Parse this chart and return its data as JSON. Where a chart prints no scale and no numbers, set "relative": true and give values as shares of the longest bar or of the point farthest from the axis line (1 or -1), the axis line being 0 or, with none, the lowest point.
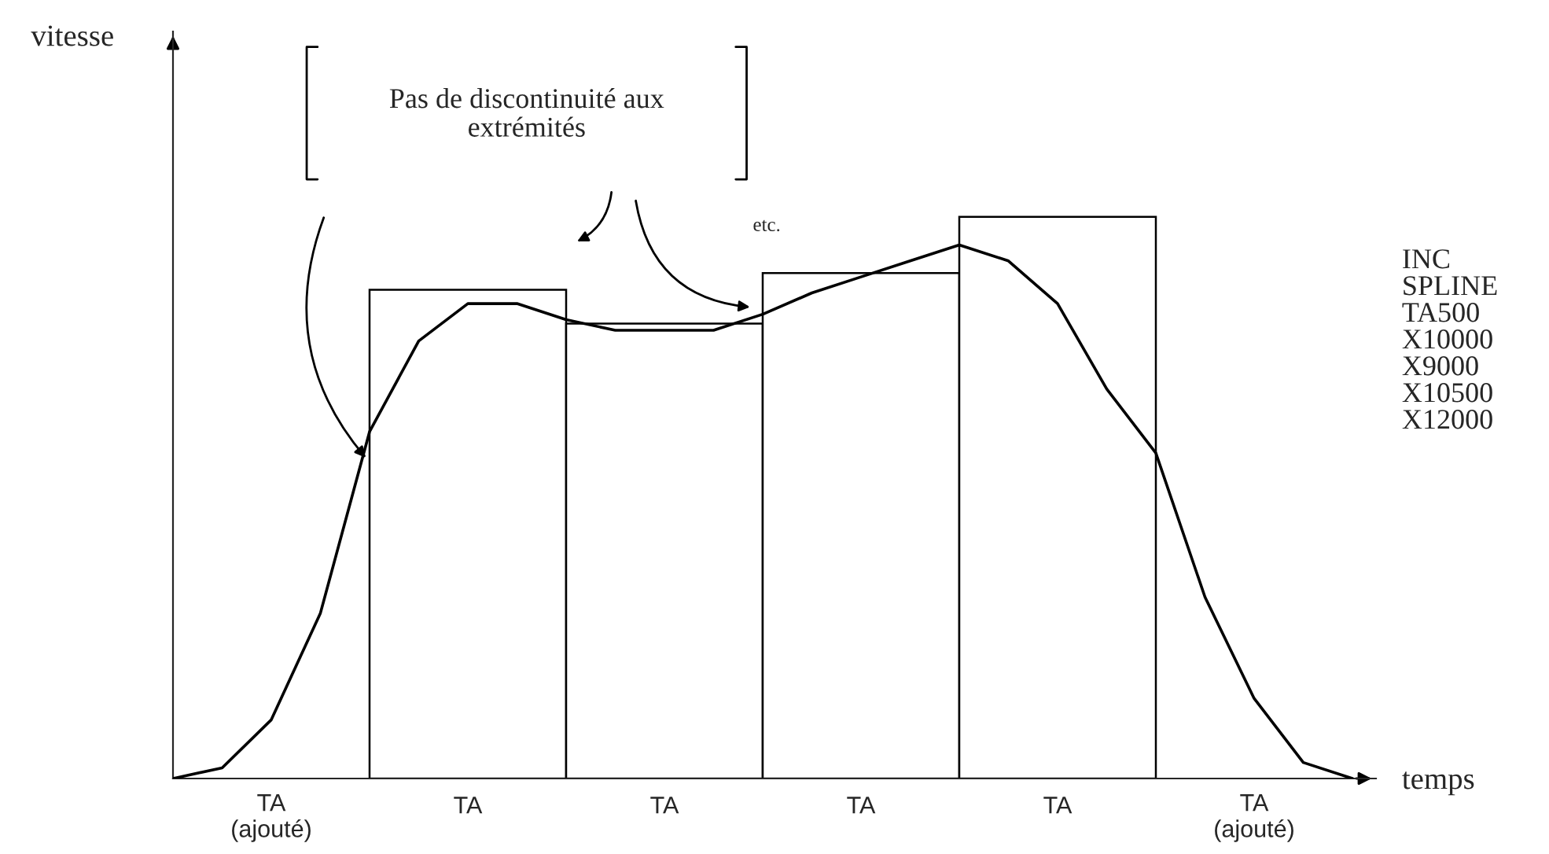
{
  "chart_data": [
    {
      "type": "bar",
      "relative": true,
      "ylabel": "vitesse",
      "categories": [
        "TA",
        "TA",
        "TA",
        "TA"
      ],
      "series": [
        {
          "color": "#000000",
          "values": [
            0.87,
            0.81,
            0.9,
            1
          ]
        }
      ],
      "annotations": [
        "Pas de discontinuité aux\nextrémités",
        "etc.",
        "INC\nSPLINE\nTA500\nX10000\nX9000\nX10500\nX12000",
        "TA\n(ajouté)",
        "TA\n(ajouté)"
      ]
    },
    {
      "type": "line",
      "relative": true,
      "xlabel": "temps",
      "categories": [
        null,
        null,
        null,
        null,
        null,
        null,
        null,
        null,
        null,
        null,
        null,
        null,
        null,
        null,
        null,
        null,
        null,
        null,
        null,
        null,
        null,
        null,
        null,
        null,
        null
      ],
      "series": [
        {
          "color": "#000000",
          "values": [
            0,
            0.02,
            0.11,
            0.31,
            0.65,
            0.82,
            0.89,
            0.89,
            0.86,
            0.84,
            0.84,
            0.84,
            0.87,
            0.91,
            0.94,
            0.97,
            1,
            0.97,
            0.89,
            0.73,
            0.61,
            0.34,
            0.15,
            0.03,
            0
          ]
        }
      ]
    }
  ]
}
